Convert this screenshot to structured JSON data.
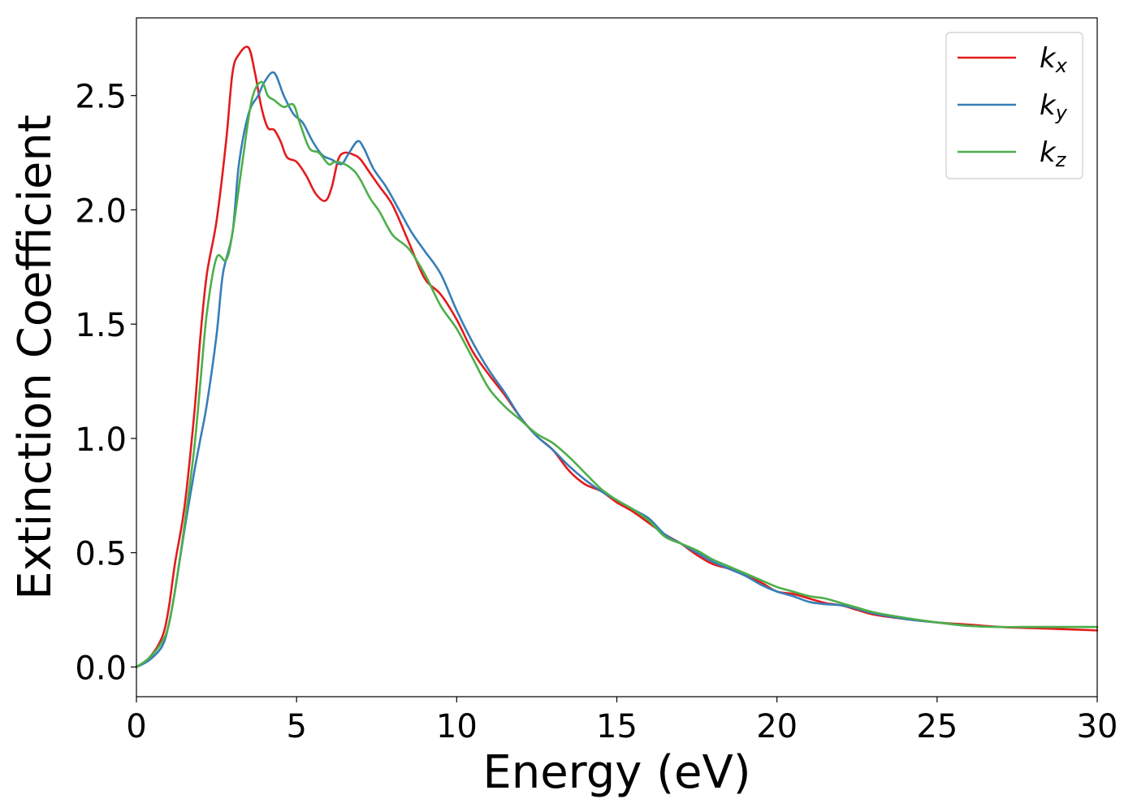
{
  "chart_data": {
    "type": "line",
    "xlabel": "Energy (eV)",
    "ylabel": "Extinction Coefficient",
    "xlim": [
      0,
      30
    ],
    "ylim": [
      -0.13,
      2.84
    ],
    "xticks": [
      0,
      5,
      10,
      15,
      20,
      25,
      30
    ],
    "xtick_labels": [
      "0",
      "5",
      "10",
      "15",
      "20",
      "25",
      "30"
    ],
    "yticks": [
      0.0,
      0.5,
      1.0,
      1.5,
      2.0,
      2.5
    ],
    "ytick_labels": [
      "0.0",
      "0.5",
      "1.0",
      "1.5",
      "2.0",
      "2.5"
    ],
    "grid": false,
    "legend_position": "top-right",
    "series": [
      {
        "name": "k",
        "subscript": "x",
        "color": "#e41a1c",
        "x": [
          0,
          0.4,
          0.8,
          1.0,
          1.2,
          1.5,
          1.8,
          2.0,
          2.2,
          2.5,
          2.8,
          3.0,
          3.2,
          3.5,
          3.7,
          3.9,
          4.1,
          4.3,
          4.5,
          4.7,
          5.0,
          5.3,
          5.6,
          5.9,
          6.1,
          6.3,
          6.5,
          6.8,
          7.0,
          7.3,
          7.6,
          8.0,
          8.5,
          9.0,
          9.5,
          10.0,
          10.5,
          11.0,
          11.5,
          12.0,
          12.5,
          13.0,
          13.5,
          14.0,
          14.5,
          15.0,
          15.5,
          16.0,
          16.5,
          17.0,
          17.5,
          18.0,
          18.5,
          19.0,
          19.5,
          20.0,
          20.5,
          21.0,
          21.5,
          22.0,
          22.5,
          23.0,
          24.0,
          25.0,
          26.0,
          27.0,
          28.0,
          29.0,
          30.0
        ],
        "y": [
          0.0,
          0.04,
          0.13,
          0.25,
          0.45,
          0.7,
          1.1,
          1.45,
          1.72,
          1.95,
          2.3,
          2.6,
          2.68,
          2.71,
          2.6,
          2.45,
          2.36,
          2.35,
          2.3,
          2.23,
          2.21,
          2.15,
          2.07,
          2.04,
          2.1,
          2.22,
          2.25,
          2.24,
          2.22,
          2.16,
          2.1,
          2.02,
          1.86,
          1.7,
          1.63,
          1.52,
          1.38,
          1.28,
          1.19,
          1.09,
          1.01,
          0.95,
          0.86,
          0.8,
          0.77,
          0.72,
          0.68,
          0.63,
          0.58,
          0.54,
          0.49,
          0.45,
          0.43,
          0.4,
          0.37,
          0.33,
          0.32,
          0.3,
          0.28,
          0.27,
          0.25,
          0.23,
          0.21,
          0.195,
          0.185,
          0.175,
          0.17,
          0.165,
          0.16
        ]
      },
      {
        "name": "k",
        "subscript": "y",
        "color": "#377eb8",
        "x": [
          0,
          0.4,
          0.8,
          1.0,
          1.2,
          1.5,
          1.8,
          2.0,
          2.2,
          2.5,
          2.7,
          3.0,
          3.2,
          3.5,
          3.8,
          4.0,
          4.3,
          4.6,
          4.9,
          5.2,
          5.5,
          5.8,
          6.1,
          6.4,
          6.6,
          6.9,
          7.1,
          7.4,
          7.8,
          8.2,
          8.6,
          9.0,
          9.5,
          10.0,
          10.5,
          11.0,
          11.5,
          12.0,
          12.5,
          13.0,
          13.5,
          14.0,
          14.5,
          15.0,
          15.5,
          16.0,
          16.5,
          17.0,
          17.5,
          18.0,
          18.5,
          19.0,
          19.5,
          20.0,
          20.5,
          21.0,
          21.5,
          22.0,
          22.5,
          23.0,
          24.0,
          25.0,
          26.0,
          27.0,
          28.0,
          29.0,
          30.0
        ],
        "y": [
          0.0,
          0.03,
          0.09,
          0.18,
          0.33,
          0.6,
          0.85,
          1.0,
          1.15,
          1.45,
          1.72,
          1.9,
          2.2,
          2.42,
          2.5,
          2.56,
          2.6,
          2.5,
          2.42,
          2.38,
          2.3,
          2.24,
          2.22,
          2.2,
          2.24,
          2.3,
          2.27,
          2.18,
          2.1,
          2.0,
          1.9,
          1.82,
          1.72,
          1.56,
          1.42,
          1.3,
          1.2,
          1.09,
          1.01,
          0.95,
          0.88,
          0.82,
          0.77,
          0.73,
          0.69,
          0.65,
          0.58,
          0.54,
          0.5,
          0.46,
          0.43,
          0.4,
          0.36,
          0.33,
          0.31,
          0.285,
          0.275,
          0.27,
          0.255,
          0.235,
          0.21,
          0.195,
          0.18,
          0.175,
          0.175,
          0.175,
          0.175
        ]
      },
      {
        "name": "k",
        "subscript": "z",
        "color": "#4daf4a",
        "x": [
          0,
          0.4,
          0.8,
          1.0,
          1.2,
          1.5,
          1.8,
          2.0,
          2.2,
          2.5,
          2.8,
          3.0,
          3.3,
          3.6,
          3.9,
          4.1,
          4.3,
          4.6,
          4.9,
          5.1,
          5.4,
          5.7,
          6.0,
          6.2,
          6.5,
          6.8,
          7.0,
          7.3,
          7.6,
          8.0,
          8.5,
          9.0,
          9.5,
          10.0,
          10.5,
          11.0,
          11.5,
          12.0,
          12.5,
          13.0,
          13.5,
          14.0,
          14.5,
          15.0,
          15.5,
          16.0,
          16.5,
          17.0,
          17.5,
          18.0,
          18.5,
          19.0,
          19.5,
          20.0,
          20.5,
          21.0,
          21.5,
          22.0,
          22.5,
          23.0,
          24.0,
          25.0,
          26.0,
          27.0,
          28.0,
          29.0,
          30.0
        ],
        "y": [
          0.0,
          0.04,
          0.11,
          0.18,
          0.33,
          0.62,
          0.95,
          1.25,
          1.55,
          1.79,
          1.78,
          1.9,
          2.2,
          2.48,
          2.56,
          2.5,
          2.48,
          2.45,
          2.46,
          2.38,
          2.27,
          2.25,
          2.2,
          2.21,
          2.2,
          2.17,
          2.13,
          2.05,
          1.99,
          1.89,
          1.83,
          1.72,
          1.58,
          1.48,
          1.35,
          1.22,
          1.14,
          1.08,
          1.02,
          0.98,
          0.92,
          0.85,
          0.78,
          0.73,
          0.69,
          0.64,
          0.57,
          0.54,
          0.51,
          0.47,
          0.44,
          0.41,
          0.38,
          0.35,
          0.33,
          0.31,
          0.3,
          0.28,
          0.26,
          0.24,
          0.215,
          0.195,
          0.18,
          0.175,
          0.175,
          0.175,
          0.175
        ]
      }
    ]
  }
}
